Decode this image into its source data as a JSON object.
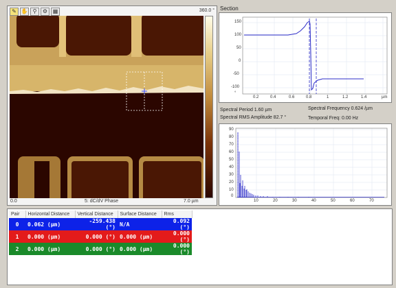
{
  "image_panel": {
    "colorbar_max": "360.0 °",
    "x_start": "0.0",
    "channel_label": "5: dC/dV Phase",
    "x_end": "7.0 µm",
    "tools": [
      "pencil-icon",
      "pan-hand-icon",
      "zoom-icon",
      "gear-icon",
      "grid-icon"
    ]
  },
  "section": {
    "title": "Section",
    "x_unit": "µm",
    "y_ticks": [
      "150",
      "100",
      "50",
      "0",
      "-50",
      "-100",
      "°"
    ],
    "x_ticks": [
      "0.2",
      "0.4",
      "0.6",
      "0.8",
      "1",
      "1.2",
      "1.4"
    ],
    "spectral_period": "Spectral Period 1.60 µm",
    "spectral_frequency": "Spectral Frequency 0.624 /µm",
    "spectral_rms": "Spectral RMS Amplitude 82.7 °",
    "temporal_freq": "Temporal Freq: 0.00 Hz"
  },
  "spectrum": {
    "y_ticks": [
      "90",
      "80",
      "70",
      "60",
      "50",
      "40",
      "30",
      "20",
      "10",
      "0"
    ],
    "x_ticks": [
      "10",
      "20",
      "30",
      "40",
      "50",
      "60",
      "70"
    ]
  },
  "measurements": {
    "headers": [
      "Pair",
      "Horizontal Distance",
      "Vertical Distance",
      "Surface Distance",
      "Rms"
    ],
    "rows": [
      {
        "pair": "0",
        "h": "0.062 (µm)",
        "v": "-259.438 (°)",
        "s": "N/A",
        "rms": "0.092 (°)"
      },
      {
        "pair": "1",
        "h": "0.000 (µm)",
        "v": "0.000 (°)",
        "s": "0.000 (µm)",
        "rms": "0.000 (°)"
      },
      {
        "pair": "2",
        "h": "0.000 (µm)",
        "v": "0.000 (°)",
        "s": "0.000 (µm)",
        "rms": "0.000 (°)"
      }
    ]
  },
  "colors": {
    "row0": "#0d22e8",
    "row1": "#e31b1b",
    "row2": "#1a8a2a",
    "afm_dark": "#2b0600",
    "afm_light": "#d7b56a"
  }
}
